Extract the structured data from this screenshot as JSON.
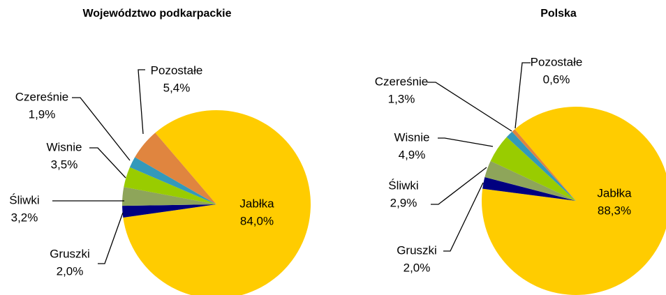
{
  "chart_data": [
    {
      "type": "pie",
      "title": "Województwo podkarpackie",
      "categories": [
        "Jabłka",
        "Gruszki",
        "Śliwki",
        "Wisnie",
        "Czereśnie",
        "Pozostałe"
      ],
      "values": [
        84.0,
        2.0,
        3.2,
        3.5,
        1.9,
        5.4
      ],
      "value_labels": [
        "84,0%",
        "2,0%",
        "3,2%",
        "3,5%",
        "1,9%",
        "5,4%"
      ],
      "colors": [
        "#ffcc00",
        "#000080",
        "#8ea55a",
        "#99cc00",
        "#3399bb",
        "#e0853f"
      ]
    },
    {
      "type": "pie",
      "title": "Polska",
      "categories": [
        "Jabłka",
        "Gruszki",
        "Śliwki",
        "Wisnie",
        "Czereśnie",
        "Pozostałe"
      ],
      "values": [
        88.3,
        2.0,
        2.9,
        4.9,
        1.3,
        0.6
      ],
      "value_labels": [
        "88,3%",
        "2,0%",
        "2,9%",
        "4,9%",
        "1,3%",
        "0,6%"
      ],
      "colors": [
        "#ffcc00",
        "#000080",
        "#8ea55a",
        "#99cc00",
        "#3399bb",
        "#e0853f"
      ]
    }
  ]
}
